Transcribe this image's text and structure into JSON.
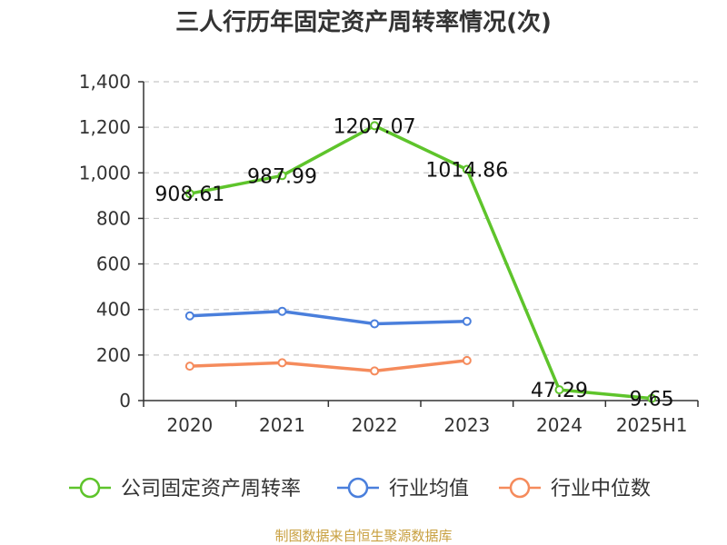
{
  "chart_data": {
    "type": "line",
    "title": "三人行历年固定资产周转率情况(次)",
    "categories": [
      "2020",
      "2021",
      "2022",
      "2023",
      "2024",
      "2025H1"
    ],
    "ylim": [
      0,
      1400
    ],
    "yticks": [
      "0",
      "200",
      "400",
      "600",
      "800",
      "1,000",
      "1,200",
      "1,400"
    ],
    "grid": true,
    "legend_position": "bottom",
    "series": [
      {
        "name": "公司固定资产周转率",
        "color": "#5ec42b",
        "values": [
          908.61,
          987.99,
          1207.07,
          1014.86,
          47.29,
          9.65
        ],
        "labels": [
          "908.61",
          "987.99",
          "1207.07",
          "1014.86",
          "47.29",
          "9.65"
        ]
      },
      {
        "name": "行业均值",
        "color": "#4a7fdc",
        "values": [
          372,
          392,
          337,
          348,
          null,
          null
        ]
      },
      {
        "name": "行业中位数",
        "color": "#f58b5c",
        "values": [
          151,
          166,
          130,
          176,
          null,
          null
        ]
      }
    ],
    "source": "制图数据来自恒生聚源数据库"
  }
}
